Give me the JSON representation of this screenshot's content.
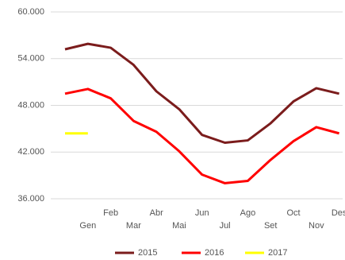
{
  "chart_data": {
    "type": "line",
    "categories": [
      null,
      "Gen",
      "Feb",
      "Mar",
      "Abr",
      "Mai",
      "Jun",
      "Jul",
      "Ago",
      "Set",
      "Oct",
      "Nov",
      "Des"
    ],
    "series": [
      {
        "name": "2015",
        "color": "#7b1c1c",
        "values": [
          55200,
          55900,
          55400,
          53200,
          49800,
          47500,
          44200,
          43200,
          43500,
          45700,
          48500,
          50200,
          49500
        ]
      },
      {
        "name": "2016",
        "color": "#ff0000",
        "values": [
          49500,
          50100,
          48900,
          46000,
          44600,
          42100,
          39100,
          38000,
          38300,
          41000,
          43400,
          45200,
          44400
        ]
      },
      {
        "name": "2017",
        "color": "#ffff00",
        "values": [
          44400,
          44400,
          null,
          null,
          null,
          null,
          null,
          null,
          null,
          null,
          null,
          null,
          null
        ]
      }
    ],
    "ylim": [
      36000,
      60000
    ],
    "yticks": [
      {
        "value": 36000,
        "label": "36.000"
      },
      {
        "value": 42000,
        "label": "42.000"
      },
      {
        "value": 48000,
        "label": "48.000"
      },
      {
        "value": 54000,
        "label": "54.000"
      },
      {
        "value": 60000,
        "label": "60.000"
      }
    ],
    "grid": true,
    "legend": "bottom"
  }
}
